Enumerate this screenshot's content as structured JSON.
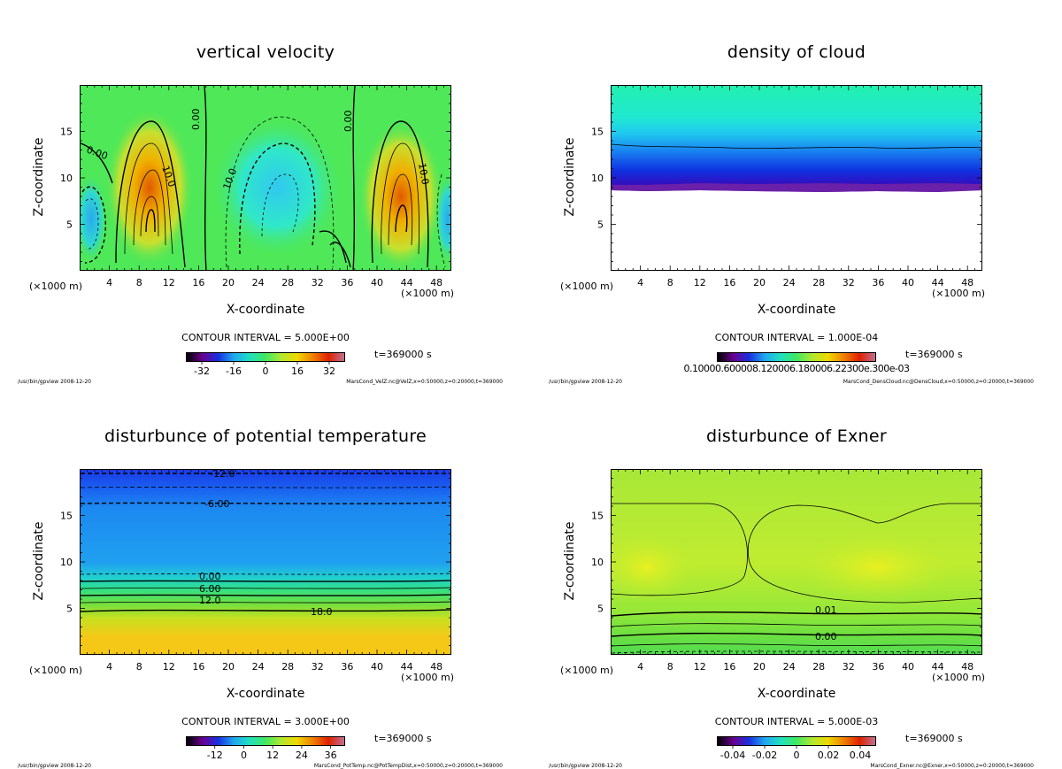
{
  "chart_data": [
    {
      "type": "heatmap",
      "title": "vertical velocity",
      "xlabel": "X-coordinate",
      "ylabel": "Z-coordinate",
      "x_unit_left": "(×1000 m)",
      "x_unit_right": "(×1000 m)",
      "xticks": [
        4,
        8,
        12,
        16,
        20,
        24,
        28,
        32,
        36,
        40,
        44,
        48
      ],
      "yticks": [
        5,
        10,
        15
      ],
      "xlim": [
        0,
        50
      ],
      "ylim": [
        0,
        20
      ],
      "contour_interval": "CONTOUR INTERVAL = 5.000E+00",
      "contour_labels": [
        "0.00",
        "10.0",
        "0.00",
        "10.0",
        "0.00",
        "10.0"
      ],
      "time": "t=369000 s",
      "colorbar_ticks": [
        "-32",
        "-16",
        "0",
        "16",
        "32"
      ],
      "colorbar_range": [
        -40,
        40
      ],
      "footer_left": "/usr/bin/gpview  2008-12-20",
      "footer_right": "MarsCond_VelZ.nc@VelZ,x=0:50000,z=0:20000,t=369000"
    },
    {
      "type": "heatmap",
      "title": "density of cloud",
      "xlabel": "X-coordinate",
      "ylabel": "Z-coordinate",
      "x_unit_left": "(×1000 m)",
      "x_unit_right": "(×1000 m)",
      "xticks": [
        4,
        8,
        12,
        16,
        20,
        24,
        28,
        32,
        36,
        40,
        44,
        48
      ],
      "yticks": [
        5,
        10,
        15
      ],
      "xlim": [
        0,
        50
      ],
      "ylim": [
        0,
        20
      ],
      "contour_interval": "CONTOUR INTERVAL = 1.000E-04",
      "time": "t=369000 s",
      "colorbar_label_text": "0.10000.600008.120006.180006.22300e.300e-03",
      "footer_left": "/usr/bin/gpview  2008-12-20",
      "footer_right": "MarsCond_DensCloud.nc@DensCloud,x=0:50000,z=0:20000,t=369000"
    },
    {
      "type": "heatmap",
      "title": "disturbunce of potential temperature",
      "xlabel": "X-coordinate",
      "ylabel": "Z-coordinate",
      "x_unit_left": "(×1000 m)",
      "x_unit_right": "(×1000 m)",
      "xticks": [
        4,
        8,
        12,
        16,
        20,
        24,
        28,
        32,
        36,
        40,
        44,
        48
      ],
      "yticks": [
        5,
        10,
        15
      ],
      "xlim": [
        0,
        50
      ],
      "ylim": [
        0,
        20
      ],
      "contour_interval": "CONTOUR INTERVAL = 3.000E+00",
      "contour_labels": [
        "-12.0",
        "-6.00",
        "0.00",
        "6.00",
        "12.0",
        "18.0"
      ],
      "time": "t=369000 s",
      "colorbar_ticks": [
        "-12",
        "0",
        "12",
        "24",
        "36"
      ],
      "colorbar_range": [
        -24,
        42
      ],
      "footer_left": "/usr/bin/gpview  2008-12-20",
      "footer_right": "MarsCond_PotTemp.nc@PotTempDist,x=0:50000,z=0:20000,t=369000"
    },
    {
      "type": "heatmap",
      "title": "disturbunce of Exner",
      "xlabel": "X-coordinate",
      "ylabel": "Z-coordinate",
      "x_unit_left": "(×1000 m)",
      "x_unit_right": "(×1000 m)",
      "xticks": [
        4,
        8,
        12,
        16,
        20,
        24,
        28,
        32,
        36,
        40,
        44,
        48
      ],
      "yticks": [
        5,
        10,
        15
      ],
      "xlim": [
        0,
        50
      ],
      "ylim": [
        0,
        20
      ],
      "contour_interval": "CONTOUR INTERVAL = 5.000E-03",
      "contour_labels": [
        "0.01",
        "0.00"
      ],
      "time": "t=369000 s",
      "colorbar_ticks": [
        "-0.04",
        "-0.02",
        "0",
        "0.02",
        "0.04"
      ],
      "colorbar_range": [
        -0.05,
        0.05
      ],
      "footer_left": "/usr/bin/gpview  2008-12-20",
      "footer_right": "MarsCond_Exner.nc@Exner,x=0:50000,z=0:20000,t=369000"
    }
  ],
  "colors": {
    "velocity_background": "#4ee858",
    "cloud_top": "#22f0b0",
    "cloud_base": "#7020a8",
    "pt_top": "#1e60f0",
    "pt_bottom": "#f5c818",
    "exner_background": "#b8f030"
  }
}
